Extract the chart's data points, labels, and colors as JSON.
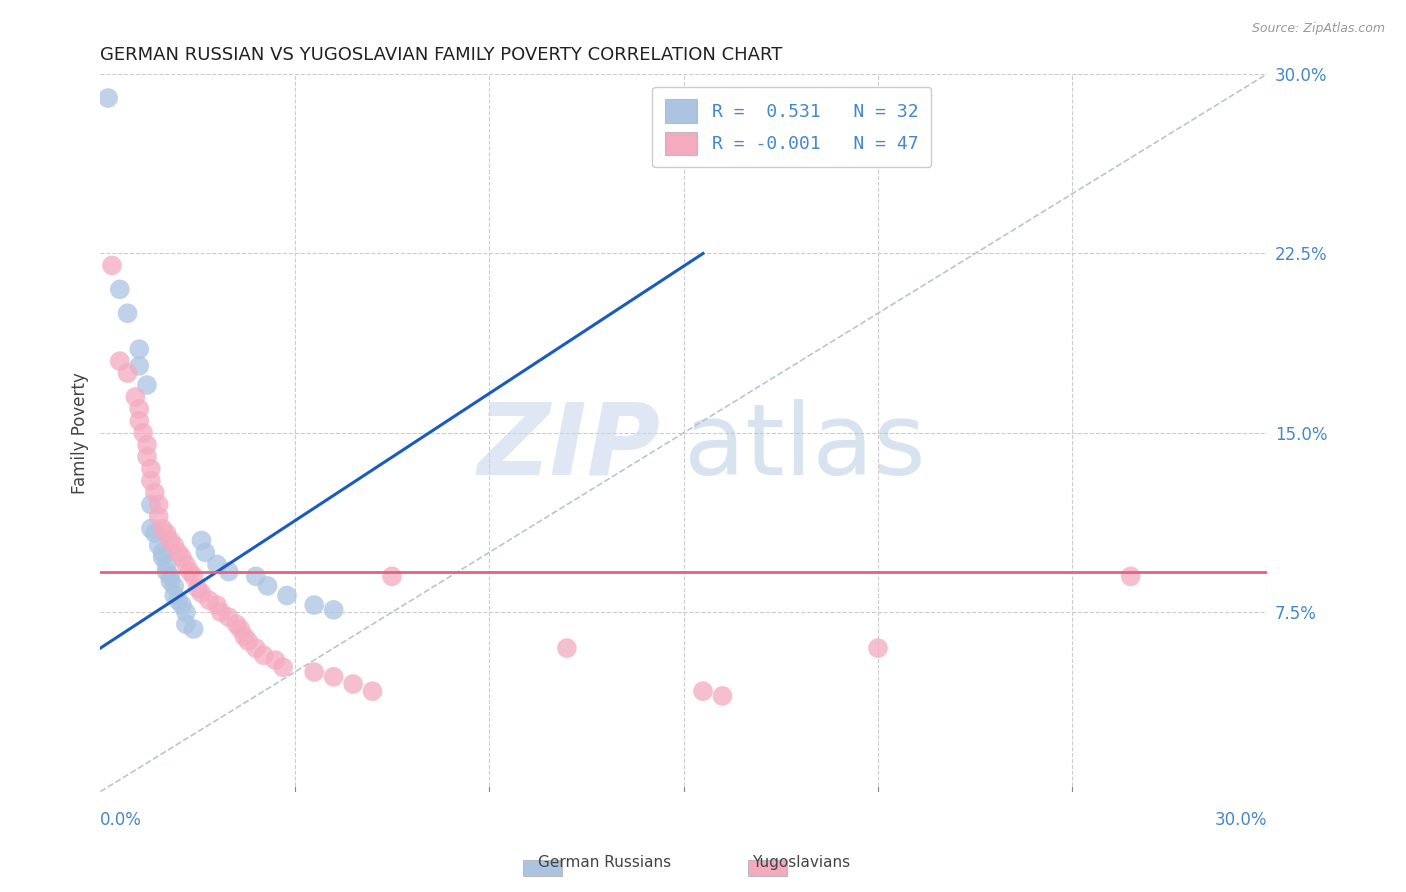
{
  "title": "GERMAN RUSSIAN VS YUGOSLAVIAN FAMILY POVERTY CORRELATION CHART",
  "source": "Source: ZipAtlas.com",
  "ylabel": "Family Poverty",
  "right_yticks": [
    "30.0%",
    "22.5%",
    "15.0%",
    "7.5%"
  ],
  "right_ytick_vals": [
    0.3,
    0.225,
    0.15,
    0.075
  ],
  "xmin": 0.0,
  "xmax": 0.3,
  "ymin": 0.0,
  "ymax": 0.3,
  "blue_color": "#aac4e2",
  "pink_color": "#f4aabf",
  "blue_line_color": "#1a5bbf",
  "pink_line_color": "#e8607a",
  "dashed_line_color": "#b8c5d8",
  "blue_scatter": [
    [
      0.002,
      0.29
    ],
    [
      0.005,
      0.21
    ],
    [
      0.007,
      0.2
    ],
    [
      0.01,
      0.185
    ],
    [
      0.01,
      0.178
    ],
    [
      0.012,
      0.17
    ],
    [
      0.013,
      0.12
    ],
    [
      0.013,
      0.11
    ],
    [
      0.014,
      0.108
    ],
    [
      0.015,
      0.103
    ],
    [
      0.016,
      0.1
    ],
    [
      0.016,
      0.098
    ],
    [
      0.017,
      0.095
    ],
    [
      0.017,
      0.092
    ],
    [
      0.018,
      0.09
    ],
    [
      0.018,
      0.088
    ],
    [
      0.019,
      0.086
    ],
    [
      0.019,
      0.082
    ],
    [
      0.02,
      0.08
    ],
    [
      0.021,
      0.078
    ],
    [
      0.022,
      0.075
    ],
    [
      0.022,
      0.07
    ],
    [
      0.024,
      0.068
    ],
    [
      0.026,
      0.105
    ],
    [
      0.027,
      0.1
    ],
    [
      0.03,
      0.095
    ],
    [
      0.033,
      0.092
    ],
    [
      0.04,
      0.09
    ],
    [
      0.043,
      0.086
    ],
    [
      0.048,
      0.082
    ],
    [
      0.055,
      0.078
    ],
    [
      0.06,
      0.076
    ]
  ],
  "pink_scatter": [
    [
      0.003,
      0.22
    ],
    [
      0.005,
      0.18
    ],
    [
      0.007,
      0.175
    ],
    [
      0.009,
      0.165
    ],
    [
      0.01,
      0.16
    ],
    [
      0.01,
      0.155
    ],
    [
      0.011,
      0.15
    ],
    [
      0.012,
      0.145
    ],
    [
      0.012,
      0.14
    ],
    [
      0.013,
      0.135
    ],
    [
      0.013,
      0.13
    ],
    [
      0.014,
      0.125
    ],
    [
      0.015,
      0.12
    ],
    [
      0.015,
      0.115
    ],
    [
      0.016,
      0.11
    ],
    [
      0.017,
      0.108
    ],
    [
      0.018,
      0.105
    ],
    [
      0.019,
      0.103
    ],
    [
      0.02,
      0.1
    ],
    [
      0.021,
      0.098
    ],
    [
      0.022,
      0.095
    ],
    [
      0.023,
      0.092
    ],
    [
      0.024,
      0.09
    ],
    [
      0.025,
      0.085
    ],
    [
      0.026,
      0.083
    ],
    [
      0.028,
      0.08
    ],
    [
      0.03,
      0.078
    ],
    [
      0.031,
      0.075
    ],
    [
      0.033,
      0.073
    ],
    [
      0.035,
      0.07
    ],
    [
      0.036,
      0.068
    ],
    [
      0.037,
      0.065
    ],
    [
      0.038,
      0.063
    ],
    [
      0.04,
      0.06
    ],
    [
      0.042,
      0.057
    ],
    [
      0.045,
      0.055
    ],
    [
      0.047,
      0.052
    ],
    [
      0.055,
      0.05
    ],
    [
      0.06,
      0.048
    ],
    [
      0.065,
      0.045
    ],
    [
      0.07,
      0.042
    ],
    [
      0.075,
      0.09
    ],
    [
      0.12,
      0.06
    ],
    [
      0.155,
      0.042
    ],
    [
      0.16,
      0.04
    ],
    [
      0.2,
      0.06
    ],
    [
      0.265,
      0.09
    ]
  ],
  "blue_line_x": [
    0.0,
    0.155
  ],
  "blue_line_y": [
    0.06,
    0.225
  ],
  "pink_line_x": [
    0.0,
    0.3
  ],
  "pink_line_y": [
    0.092,
    0.092
  ],
  "dashed_line_x": [
    0.0,
    0.3
  ],
  "dashed_line_y": [
    0.0,
    0.3
  ],
  "legend_blue_label": "German Russians",
  "legend_pink_label": "Yugoslavians",
  "title_color": "#222222",
  "right_axis_color": "#4488cc",
  "bottom_axis_label_color": "#4488cc",
  "grid_color": "#cccccc",
  "watermark_zip_color": "#c8d8ec",
  "watermark_atlas_color": "#b0c8e0"
}
